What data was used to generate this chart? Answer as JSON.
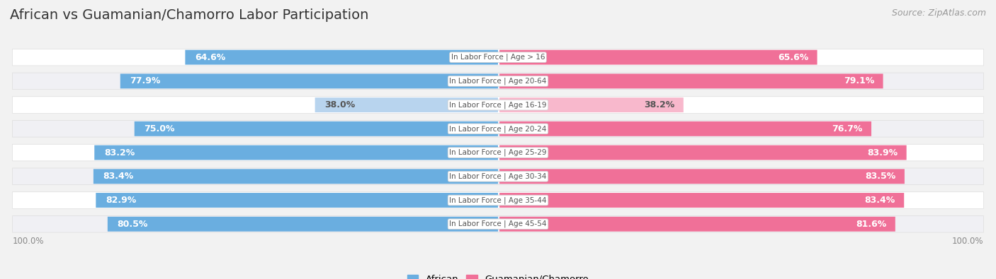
{
  "title": "African vs Guamanian/Chamorro Labor Participation",
  "source": "Source: ZipAtlas.com",
  "categories": [
    "In Labor Force | Age > 16",
    "In Labor Force | Age 20-64",
    "In Labor Force | Age 16-19",
    "In Labor Force | Age 20-24",
    "In Labor Force | Age 25-29",
    "In Labor Force | Age 30-34",
    "In Labor Force | Age 35-44",
    "In Labor Force | Age 45-54"
  ],
  "african_values": [
    64.6,
    77.9,
    38.0,
    75.0,
    83.2,
    83.4,
    82.9,
    80.5
  ],
  "guamanian_values": [
    65.6,
    79.1,
    38.2,
    76.7,
    83.9,
    83.5,
    83.4,
    81.6
  ],
  "african_color": "#6aaee0",
  "african_color_light": "#b8d4ee",
  "guamanian_color": "#f07098",
  "guamanian_color_light": "#f8b8cc",
  "row_bg_light": "#f7f7f9",
  "row_bg_dark": "#eeeeee",
  "background_color": "#f2f2f2",
  "max_value": 100.0,
  "legend_african": "African",
  "legend_guamanian": "Guamanian/Chamorro",
  "title_fontsize": 14,
  "source_fontsize": 9,
  "bar_label_fontsize": 9,
  "category_fontsize": 7.5
}
